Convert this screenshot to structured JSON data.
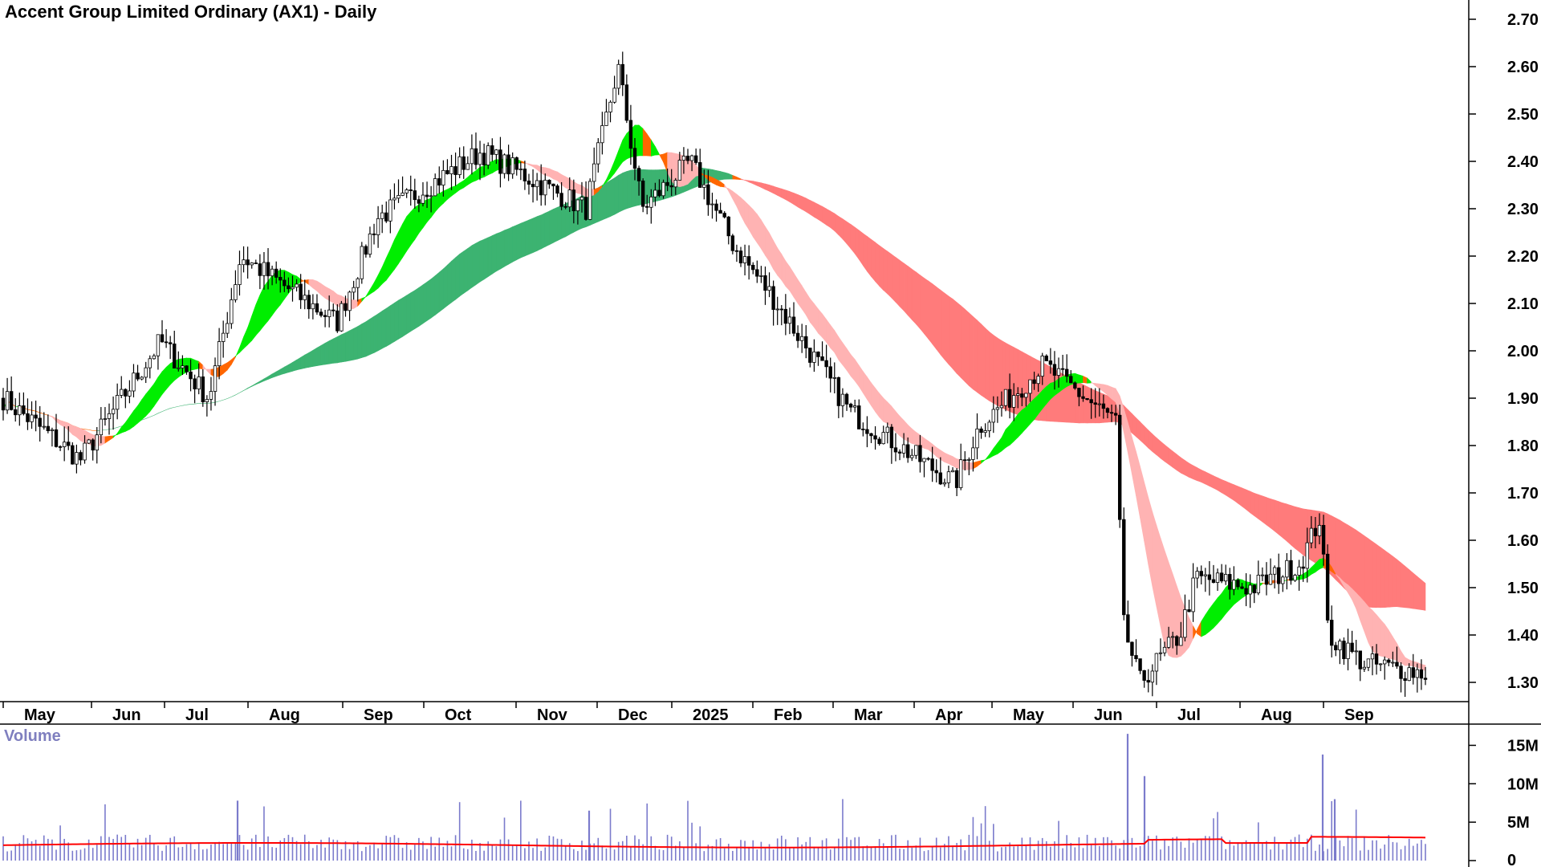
{
  "title": "Accent Group Limited Ordinary (AX1) - Daily",
  "volume_title": "Volume",
  "colors": {
    "up_candle": "#ffffff",
    "down_candle": "#000000",
    "short_band_up": "#00ee00",
    "short_band_transition": "#ff6600",
    "short_band_down": "#ffb3b3",
    "long_band_up": "#3cb371",
    "long_band_transition": "#ff6600",
    "long_band_down": "#ff7b7b",
    "volume_bar": "#7b7bcc",
    "volume_avg": "#ff0000"
  },
  "chart_data": [
    {
      "type": "candlestick",
      "title": "Accent Group Limited Ordinary (AX1) - Daily",
      "x_ticks": [
        "May",
        "Jun",
        "Jul",
        "Aug",
        "Sep",
        "Oct",
        "Nov",
        "Dec",
        "2025",
        "Feb",
        "Mar",
        "Apr",
        "May",
        "Jun",
        "Jul",
        "Aug",
        "Sep"
      ],
      "y_ticks": [
        "2.70",
        "2.60",
        "2.50",
        "2.40",
        "2.30",
        "2.20",
        "2.10",
        "2.00",
        "1.90",
        "1.80",
        "1.70",
        "1.60",
        "1.50",
        "1.40",
        "1.30"
      ],
      "ylim": [
        1.25,
        2.74
      ],
      "axis_side": "right",
      "price_path_monthly": [
        {
          "month": "May",
          "close": 1.83
        },
        {
          "month": "Jun",
          "close": 1.93
        },
        {
          "month": "Jul",
          "close": 1.9
        },
        {
          "month": "Aug",
          "close": 2.12
        },
        {
          "month": "Sep",
          "close": 2.2
        },
        {
          "month": "Oct",
          "close": 2.33
        },
        {
          "month": "Nov",
          "close": 2.37
        },
        {
          "month": "Dec",
          "close": 2.5
        },
        {
          "month": "2025",
          "close": 2.32
        },
        {
          "month": "Feb",
          "close": 2.1
        },
        {
          "month": "Mar",
          "close": 1.8
        },
        {
          "month": "Apr",
          "close": 1.82
        },
        {
          "month": "May",
          "close": 1.96
        },
        {
          "month": "Jun",
          "close": 1.35
        },
        {
          "month": "Jul",
          "close": 1.5
        },
        {
          "month": "Aug",
          "close": 1.55
        },
        {
          "month": "Sep",
          "close": 1.33
        }
      ],
      "overlays": [
        {
          "kind": "short-term moving-average band",
          "colors": [
            "green",
            "orange",
            "pink"
          ]
        },
        {
          "kind": "long-term moving-average band",
          "colors": [
            "dark green",
            "orange",
            "red"
          ]
        }
      ],
      "grid": false
    },
    {
      "type": "bar",
      "title": "Volume",
      "y_ticks": [
        "15M",
        "10M",
        "5M",
        "0"
      ],
      "ylim": [
        0,
        17000000
      ],
      "axis_side": "right",
      "notable_peaks": [
        {
          "month": "Jun",
          "value": 16500000
        },
        {
          "month": "Jun",
          "value": 11000000
        },
        {
          "month": "Aug",
          "value": 13800000
        },
        {
          "month": "Aug",
          "value": 8000000
        },
        {
          "month": "Dec",
          "value": 6500000
        },
        {
          "month": "Aug",
          "value": 7800000
        }
      ],
      "average_line": true,
      "grid": false
    }
  ]
}
